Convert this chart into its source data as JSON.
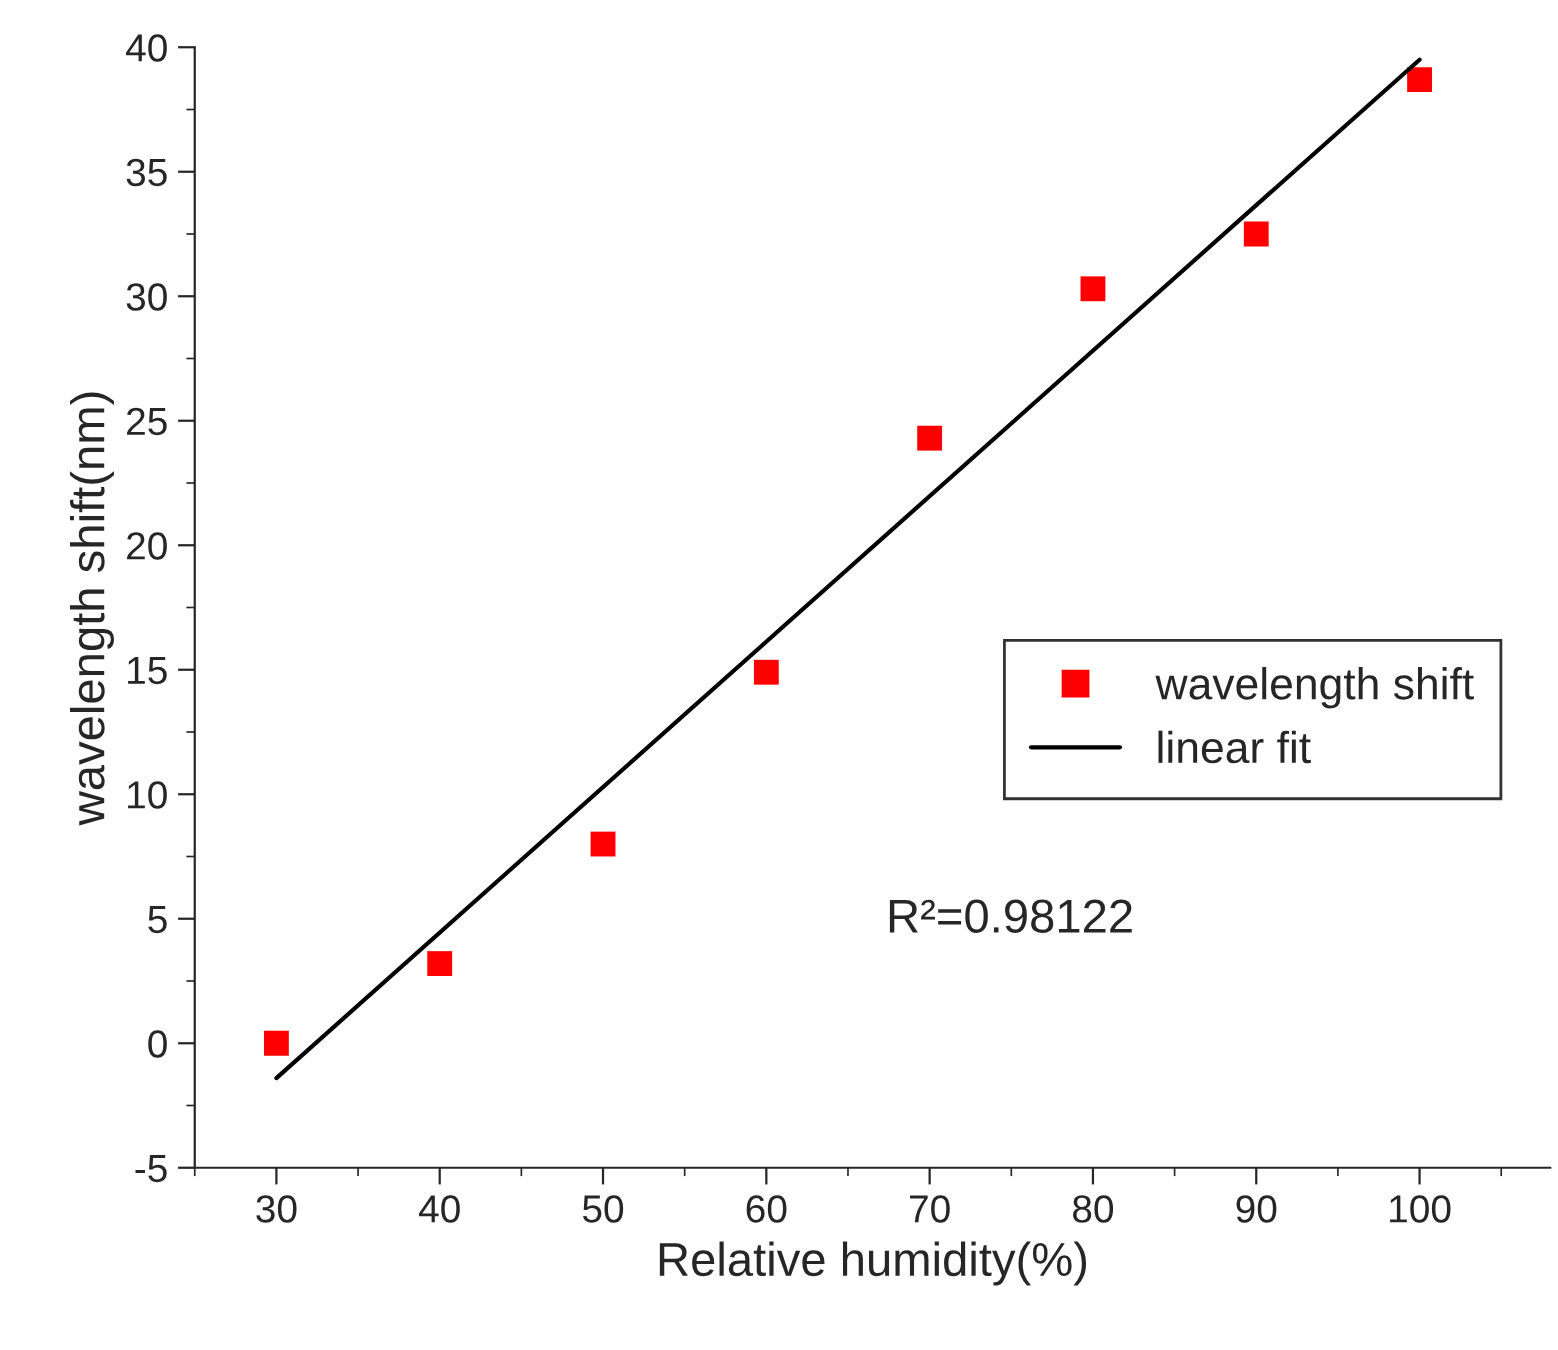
{
  "chart_data": {
    "type": "scatter",
    "xlabel": "Relative humidity(%)",
    "ylabel": "wavelength shift(nm)",
    "xlim": [
      25,
      108
    ],
    "xticks": [
      30,
      40,
      50,
      60,
      70,
      80,
      90,
      100
    ],
    "ylim": [
      -5,
      40
    ],
    "yticks": [
      -5,
      0,
      5,
      10,
      15,
      20,
      25,
      30,
      35,
      40
    ],
    "series": [
      {
        "name": "wavelength shift",
        "color": "#ff0000",
        "marker": "square",
        "x": [
          30,
          40,
          50,
          60,
          70,
          80,
          90,
          100
        ],
        "values": [
          0.0,
          3.2,
          8.0,
          14.9,
          24.3,
          30.3,
          32.5,
          38.7
        ]
      },
      {
        "name": "linear fit",
        "type": "line",
        "color": "#000000",
        "line_style": "solid",
        "marker": "none",
        "x": [
          30,
          100
        ],
        "values": [
          -1.4,
          39.5
        ]
      }
    ],
    "annotations": [
      "R²=0.98122"
    ],
    "legend": "center right",
    "grid": false
  }
}
